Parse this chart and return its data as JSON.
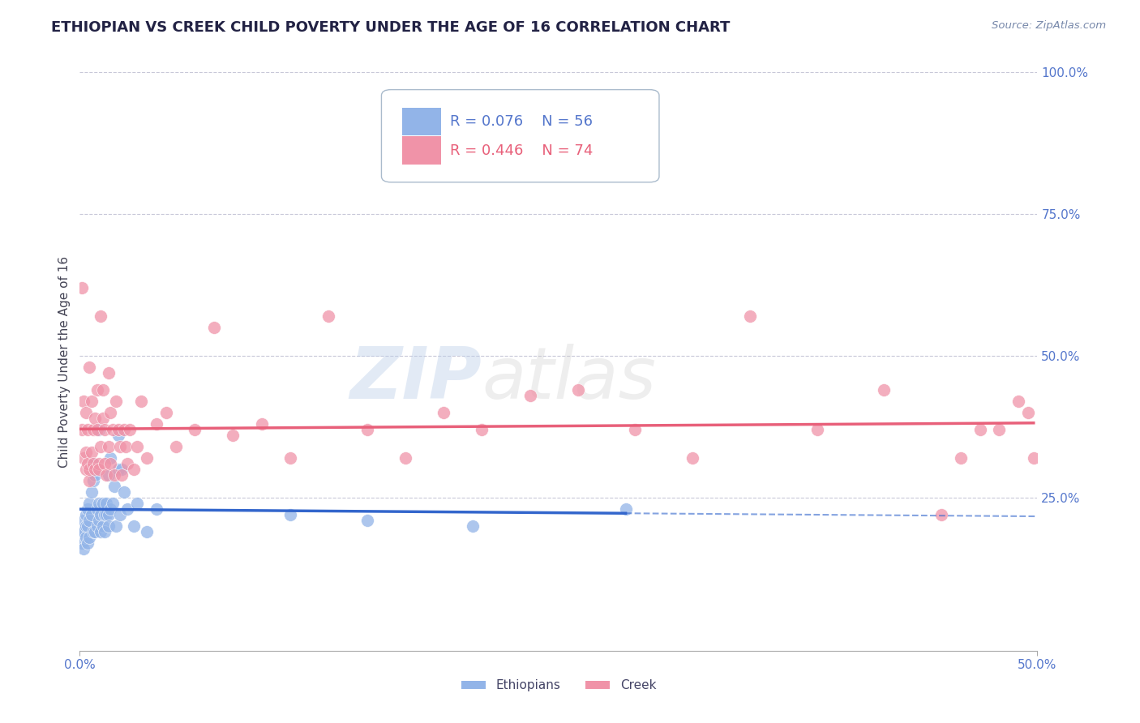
{
  "title": "ETHIOPIAN VS CREEK CHILD POVERTY UNDER THE AGE OF 16 CORRELATION CHART",
  "source": "Source: ZipAtlas.com",
  "ylabel": "Child Poverty Under the Age of 16",
  "xlim": [
    0.0,
    0.5
  ],
  "ylim": [
    -0.02,
    1.0
  ],
  "ytick_vals_right": [
    1.0,
    0.75,
    0.5,
    0.25
  ],
  "ytick_labels_right": [
    "100.0%",
    "75.0%",
    "50.0%",
    "25.0%"
  ],
  "background_color": "#ffffff",
  "watermark_text": "ZIPatlas",
  "legend_eth_R": "R = 0.076",
  "legend_eth_N": "N = 56",
  "legend_creek_R": "R = 0.446",
  "legend_creek_N": "N = 74",
  "eth_color": "#92b4e8",
  "creek_color": "#f093a8",
  "eth_line_color": "#3366cc",
  "creek_line_color": "#e8607a",
  "title_color": "#222244",
  "axis_label_color": "#5577cc",
  "figsize": [
    14.06,
    8.92
  ],
  "dpi": 100,
  "ethiopians_x": [
    0.001,
    0.001,
    0.002,
    0.002,
    0.002,
    0.003,
    0.003,
    0.003,
    0.004,
    0.004,
    0.004,
    0.005,
    0.005,
    0.005,
    0.006,
    0.006,
    0.007,
    0.007,
    0.007,
    0.008,
    0.008,
    0.009,
    0.009,
    0.01,
    0.01,
    0.01,
    0.011,
    0.011,
    0.012,
    0.012,
    0.013,
    0.013,
    0.014,
    0.014,
    0.015,
    0.015,
    0.015,
    0.016,
    0.016,
    0.017,
    0.018,
    0.019,
    0.02,
    0.02,
    0.021,
    0.022,
    0.023,
    0.025,
    0.028,
    0.03,
    0.035,
    0.04,
    0.11,
    0.15,
    0.205,
    0.285
  ],
  "ethiopians_y": [
    0.19,
    0.17,
    0.21,
    0.19,
    0.16,
    0.22,
    0.2,
    0.18,
    0.23,
    0.2,
    0.17,
    0.24,
    0.21,
    0.18,
    0.26,
    0.22,
    0.31,
    0.28,
    0.19,
    0.29,
    0.19,
    0.23,
    0.2,
    0.24,
    0.37,
    0.21,
    0.22,
    0.19,
    0.2,
    0.24,
    0.22,
    0.19,
    0.24,
    0.22,
    0.22,
    0.2,
    0.29,
    0.32,
    0.23,
    0.24,
    0.27,
    0.2,
    0.36,
    0.3,
    0.22,
    0.3,
    0.26,
    0.23,
    0.2,
    0.24,
    0.19,
    0.23,
    0.22,
    0.21,
    0.2,
    0.23
  ],
  "creek_x": [
    0.001,
    0.001,
    0.002,
    0.002,
    0.003,
    0.003,
    0.003,
    0.004,
    0.004,
    0.005,
    0.005,
    0.005,
    0.006,
    0.006,
    0.007,
    0.007,
    0.008,
    0.008,
    0.009,
    0.009,
    0.01,
    0.01,
    0.011,
    0.011,
    0.012,
    0.012,
    0.013,
    0.013,
    0.014,
    0.015,
    0.015,
    0.016,
    0.016,
    0.017,
    0.018,
    0.019,
    0.02,
    0.021,
    0.022,
    0.023,
    0.024,
    0.025,
    0.026,
    0.028,
    0.03,
    0.032,
    0.035,
    0.04,
    0.045,
    0.05,
    0.06,
    0.07,
    0.08,
    0.095,
    0.11,
    0.13,
    0.15,
    0.17,
    0.19,
    0.21,
    0.235,
    0.26,
    0.29,
    0.32,
    0.35,
    0.385,
    0.42,
    0.45,
    0.46,
    0.47,
    0.48,
    0.49,
    0.495,
    0.498
  ],
  "creek_y": [
    0.62,
    0.37,
    0.42,
    0.32,
    0.4,
    0.33,
    0.3,
    0.37,
    0.31,
    0.28,
    0.3,
    0.48,
    0.33,
    0.42,
    0.37,
    0.31,
    0.3,
    0.39,
    0.44,
    0.37,
    0.31,
    0.3,
    0.34,
    0.57,
    0.39,
    0.44,
    0.31,
    0.37,
    0.29,
    0.47,
    0.34,
    0.4,
    0.31,
    0.37,
    0.29,
    0.42,
    0.37,
    0.34,
    0.29,
    0.37,
    0.34,
    0.31,
    0.37,
    0.3,
    0.34,
    0.42,
    0.32,
    0.38,
    0.4,
    0.34,
    0.37,
    0.55,
    0.36,
    0.38,
    0.32,
    0.57,
    0.37,
    0.32,
    0.4,
    0.37,
    0.43,
    0.44,
    0.37,
    0.32,
    0.57,
    0.37,
    0.44,
    0.22,
    0.32,
    0.37,
    0.37,
    0.42,
    0.4,
    0.32
  ]
}
